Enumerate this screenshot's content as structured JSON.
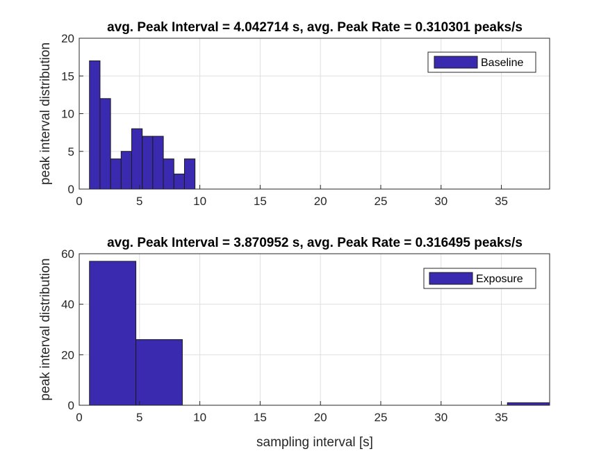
{
  "chart_data": [
    {
      "type": "bar",
      "title": "avg. Peak Interval = 4.042714 s, avg. Peak Rate = 0.310301 peaks/s",
      "xlabel": "",
      "ylabel": "peak interval distribution",
      "xlim": [
        0,
        39
      ],
      "ylim": [
        0,
        20
      ],
      "xticks": [
        0,
        5,
        10,
        15,
        20,
        25,
        30,
        35
      ],
      "yticks": [
        0,
        5,
        10,
        15,
        20
      ],
      "grid": true,
      "legend_position": "top-right",
      "series": [
        {
          "name": "Baseline",
          "color": "#3a2ab0",
          "bin_edges": [
            0.85,
            1.725,
            2.6,
            3.475,
            4.35,
            5.225,
            6.1,
            6.975,
            7.85,
            8.725,
            9.6
          ],
          "values": [
            17,
            12,
            4,
            5,
            8,
            7,
            7,
            4,
            2,
            4
          ]
        }
      ]
    },
    {
      "type": "bar",
      "title": "avg. Peak Interval = 3.870952 s, avg. Peak Rate = 0.316495 peaks/s",
      "xlabel": "sampling interval [s]",
      "ylabel": "peak interval distribution",
      "xlim": [
        0,
        39
      ],
      "ylim": [
        0,
        60
      ],
      "xticks": [
        0,
        5,
        10,
        15,
        20,
        25,
        30,
        35
      ],
      "yticks": [
        0,
        20,
        40,
        60
      ],
      "grid": true,
      "legend_position": "top-right",
      "series": [
        {
          "name": "Exposure",
          "color": "#3a2ab0",
          "bin_edges": [
            0.85,
            4.7,
            8.55,
            12.4,
            16.25,
            20.1,
            23.95,
            27.8,
            31.65,
            35.5,
            39.35
          ],
          "values": [
            57,
            26,
            0,
            0,
            0,
            0,
            0,
            0,
            0,
            1
          ]
        }
      ]
    }
  ]
}
